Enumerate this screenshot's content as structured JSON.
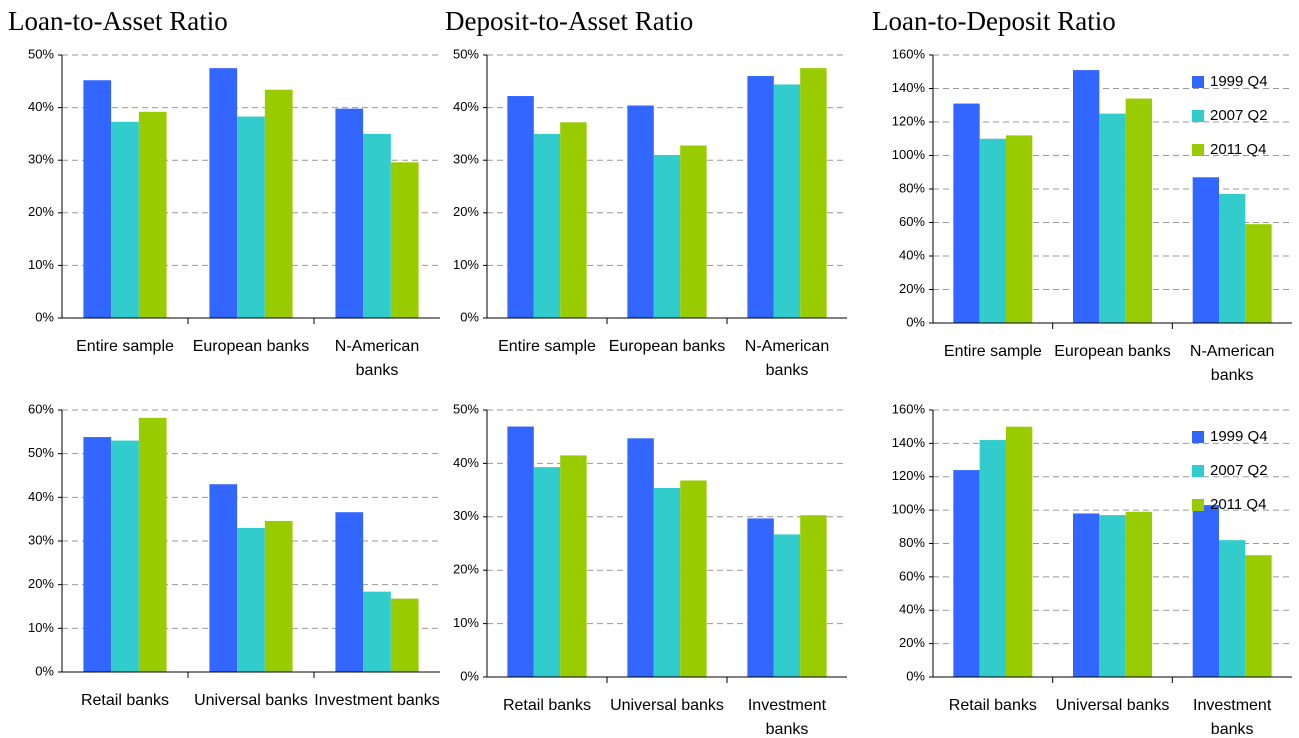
{
  "chart_data": [
    {
      "type": "bar",
      "title": "Loan-to-Asset Ratio",
      "categories": [
        "Entire sample",
        "European banks",
        "N-American banks"
      ],
      "series": [
        {
          "color": "#3366ff",
          "values": [
            45.2,
            47.5,
            39.8
          ]
        },
        {
          "color": "#33cccc",
          "values": [
            37.3,
            38.3,
            35.0
          ]
        },
        {
          "color": "#99cc00",
          "values": [
            39.2,
            43.4,
            29.6
          ]
        }
      ],
      "ylim": [
        0,
        50
      ],
      "yticks": [
        {
          "value": 0,
          "label": "0%"
        },
        {
          "value": 10,
          "label": "10%"
        },
        {
          "value": 20,
          "label": "20%"
        },
        {
          "value": 30,
          "label": "30%"
        },
        {
          "value": 40,
          "label": "40%"
        },
        {
          "value": 50,
          "label": "50%"
        }
      ],
      "grid": true
    },
    {
      "type": "bar",
      "title": "Deposit-to-Asset Ratio",
      "categories": [
        "Entire sample",
        "European banks",
        "N-American banks"
      ],
      "series": [
        {
          "color": "#3366ff",
          "values": [
            42.2,
            40.4,
            46.0
          ]
        },
        {
          "color": "#33cccc",
          "values": [
            35.0,
            31.0,
            44.4
          ]
        },
        {
          "color": "#99cc00",
          "values": [
            37.2,
            32.8,
            47.5
          ]
        }
      ],
      "ylim": [
        0,
        50
      ],
      "yticks": [
        {
          "value": 0,
          "label": "0%"
        },
        {
          "value": 10,
          "label": "10%"
        },
        {
          "value": 20,
          "label": "20%"
        },
        {
          "value": 30,
          "label": "30%"
        },
        {
          "value": 40,
          "label": "40%"
        },
        {
          "value": 50,
          "label": "50%"
        }
      ],
      "grid": true
    },
    {
      "type": "bar",
      "title": "Loan-to-Deposit Ratio",
      "categories": [
        "Entire sample",
        "European banks",
        "N-American banks"
      ],
      "series": [
        {
          "name": "1999 Q4",
          "color": "#3366ff",
          "values": [
            131,
            151,
            87
          ]
        },
        {
          "name": "2007 Q2",
          "color": "#33cccc",
          "values": [
            110,
            125,
            77
          ]
        },
        {
          "name": "2011 Q4",
          "color": "#99cc00",
          "values": [
            112,
            134,
            59
          ]
        }
      ],
      "ylim": [
        0,
        160
      ],
      "yticks": [
        {
          "value": 0,
          "label": "0%"
        },
        {
          "value": 20,
          "label": "20%"
        },
        {
          "value": 40,
          "label": "40%"
        },
        {
          "value": 60,
          "label": "60%"
        },
        {
          "value": 80,
          "label": "80%"
        },
        {
          "value": 100,
          "label": "100%"
        },
        {
          "value": 120,
          "label": "120%"
        },
        {
          "value": 140,
          "label": "140%"
        },
        {
          "value": 160,
          "label": "160%"
        }
      ],
      "grid": true,
      "legend": "upper right"
    },
    {
      "type": "bar",
      "categories": [
        "Retail banks",
        "Universal banks",
        "Investment banks"
      ],
      "series": [
        {
          "color": "#3366ff",
          "values": [
            53.8,
            43.0,
            36.6
          ]
        },
        {
          "color": "#33cccc",
          "values": [
            53.0,
            33.0,
            18.4
          ]
        },
        {
          "color": "#99cc00",
          "values": [
            58.2,
            34.6,
            16.8
          ]
        }
      ],
      "ylim": [
        0,
        60
      ],
      "yticks": [
        {
          "value": 0,
          "label": "0%"
        },
        {
          "value": 10,
          "label": "10%"
        },
        {
          "value": 20,
          "label": "20%"
        },
        {
          "value": 30,
          "label": "30%"
        },
        {
          "value": 40,
          "label": "40%"
        },
        {
          "value": 50,
          "label": "50%"
        },
        {
          "value": 60,
          "label": "60%"
        }
      ],
      "grid": true
    },
    {
      "type": "bar",
      "categories": [
        "Retail banks",
        "Universal banks",
        "Investment banks"
      ],
      "series": [
        {
          "color": "#3366ff",
          "values": [
            46.9,
            44.7,
            29.7
          ]
        },
        {
          "color": "#33cccc",
          "values": [
            39.3,
            35.4,
            26.7
          ]
        },
        {
          "color": "#99cc00",
          "values": [
            41.5,
            36.8,
            30.3
          ]
        }
      ],
      "ylim": [
        0,
        50
      ],
      "yticks": [
        {
          "value": 0,
          "label": "0%"
        },
        {
          "value": 10,
          "label": "10%"
        },
        {
          "value": 20,
          "label": "20%"
        },
        {
          "value": 30,
          "label": "30%"
        },
        {
          "value": 40,
          "label": "40%"
        },
        {
          "value": 50,
          "label": "50%"
        }
      ],
      "grid": true
    },
    {
      "type": "bar",
      "categories": [
        "Retail banks",
        "Universal banks",
        "Investment banks"
      ],
      "series": [
        {
          "name": "1999 Q4",
          "color": "#3366ff",
          "values": [
            124,
            98,
            103
          ]
        },
        {
          "name": "2007 Q2",
          "color": "#33cccc",
          "values": [
            142,
            97,
            82
          ]
        },
        {
          "name": "2011 Q4",
          "color": "#99cc00",
          "values": [
            150,
            99,
            73
          ]
        }
      ],
      "ylim": [
        0,
        160
      ],
      "yticks": [
        {
          "value": 0,
          "label": "0%"
        },
        {
          "value": 20,
          "label": "20%"
        },
        {
          "value": 40,
          "label": "40%"
        },
        {
          "value": 60,
          "label": "60%"
        },
        {
          "value": 80,
          "label": "80%"
        },
        {
          "value": 100,
          "label": "100%"
        },
        {
          "value": 120,
          "label": "120%"
        },
        {
          "value": 140,
          "label": "140%"
        },
        {
          "value": 160,
          "label": "160%"
        }
      ],
      "grid": true,
      "legend": "upper right"
    }
  ]
}
